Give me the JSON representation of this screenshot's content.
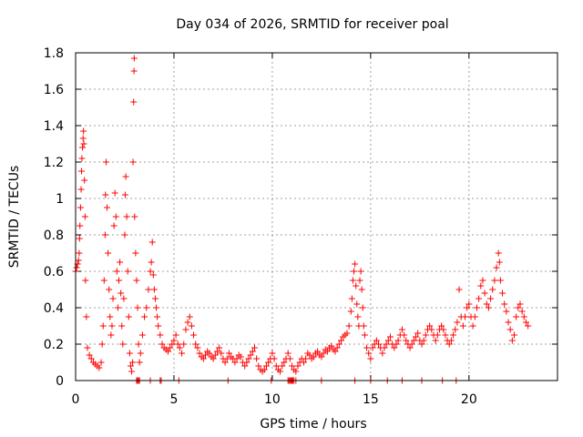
{
  "chart_data": {
    "type": "scatter",
    "title": "Day 034 of 2026, SRMTID for receiver poal",
    "xlabel": "GPS time / hours",
    "ylabel": "SRMTID / TECUs",
    "xlim": [
      0,
      24.5
    ],
    "ylim": [
      0,
      1.8
    ],
    "xticks": [
      0,
      5,
      10,
      15,
      20
    ],
    "yticks": [
      0,
      0.2,
      0.4,
      0.6,
      0.8,
      1,
      1.2,
      1.4,
      1.6,
      1.8
    ],
    "ytick_labels": [
      "0",
      "0.2",
      "0.4",
      "0.6",
      "0.8",
      "1",
      "1.2",
      "1.4",
      "1.6",
      "1.8"
    ],
    "grid": true,
    "marker": "+",
    "color": "#ff0000",
    "series": [
      {
        "name": "SRMTID",
        "points": [
          [
            0.0,
            0.6
          ],
          [
            0.05,
            0.62
          ],
          [
            0.1,
            0.64
          ],
          [
            0.15,
            0.66
          ],
          [
            0.18,
            0.7
          ],
          [
            0.2,
            0.78
          ],
          [
            0.22,
            0.85
          ],
          [
            0.25,
            0.95
          ],
          [
            0.28,
            1.05
          ],
          [
            0.3,
            1.15
          ],
          [
            0.32,
            1.22
          ],
          [
            0.35,
            1.28
          ],
          [
            0.38,
            1.33
          ],
          [
            0.4,
            1.37
          ],
          [
            0.42,
            1.3
          ],
          [
            0.45,
            1.1
          ],
          [
            0.48,
            0.9
          ],
          [
            0.5,
            0.55
          ],
          [
            0.55,
            0.35
          ],
          [
            0.6,
            0.18
          ],
          [
            0.7,
            0.14
          ],
          [
            0.8,
            0.12
          ],
          [
            0.9,
            0.1
          ],
          [
            1.0,
            0.09
          ],
          [
            1.1,
            0.08
          ],
          [
            1.2,
            0.07
          ],
          [
            1.3,
            0.1
          ],
          [
            1.35,
            0.2
          ],
          [
            1.4,
            0.3
          ],
          [
            1.45,
            0.55
          ],
          [
            1.5,
            0.8
          ],
          [
            1.52,
            1.02
          ],
          [
            1.55,
            1.2
          ],
          [
            1.6,
            0.95
          ],
          [
            1.65,
            0.7
          ],
          [
            1.7,
            0.5
          ],
          [
            1.75,
            0.35
          ],
          [
            1.8,
            0.25
          ],
          [
            1.85,
            0.3
          ],
          [
            1.9,
            0.45
          ],
          [
            1.95,
            0.85
          ],
          [
            2.0,
            1.03
          ],
          [
            2.05,
            0.9
          ],
          [
            2.1,
            0.6
          ],
          [
            2.15,
            0.4
          ],
          [
            2.2,
            0.55
          ],
          [
            2.25,
            0.65
          ],
          [
            2.3,
            0.48
          ],
          [
            2.35,
            0.3
          ],
          [
            2.4,
            0.2
          ],
          [
            2.45,
            0.45
          ],
          [
            2.5,
            0.8
          ],
          [
            2.52,
            1.02
          ],
          [
            2.55,
            1.12
          ],
          [
            2.6,
            0.9
          ],
          [
            2.65,
            0.6
          ],
          [
            2.7,
            0.35
          ],
          [
            2.75,
            0.15
          ],
          [
            2.8,
            0.08
          ],
          [
            2.85,
            0.05
          ],
          [
            2.9,
            0.1
          ],
          [
            2.92,
            1.2
          ],
          [
            2.95,
            1.53
          ],
          [
            2.97,
            1.7
          ],
          [
            2.98,
            1.77
          ],
          [
            3.0,
            0.9
          ],
          [
            3.05,
            0.7
          ],
          [
            3.1,
            0.55
          ],
          [
            3.15,
            0.4
          ],
          [
            3.2,
            0.2
          ],
          [
            3.25,
            0.1
          ],
          [
            3.3,
            0.15
          ],
          [
            3.4,
            0.25
          ],
          [
            3.5,
            0.35
          ],
          [
            3.6,
            0.4
          ],
          [
            3.7,
            0.5
          ],
          [
            3.8,
            0.6
          ],
          [
            3.85,
            0.65
          ],
          [
            3.9,
            0.76
          ],
          [
            3.95,
            0.58
          ],
          [
            4.0,
            0.5
          ],
          [
            4.05,
            0.45
          ],
          [
            4.1,
            0.4
          ],
          [
            4.15,
            0.35
          ],
          [
            4.2,
            0.3
          ],
          [
            4.3,
            0.25
          ],
          [
            4.4,
            0.2
          ],
          [
            4.5,
            0.18
          ],
          [
            4.6,
            0.17
          ],
          [
            4.7,
            0.16
          ],
          [
            4.8,
            0.18
          ],
          [
            4.9,
            0.2
          ],
          [
            5.0,
            0.22
          ],
          [
            5.1,
            0.25
          ],
          [
            5.2,
            0.2
          ],
          [
            5.3,
            0.18
          ],
          [
            5.4,
            0.15
          ],
          [
            5.5,
            0.2
          ],
          [
            5.6,
            0.28
          ],
          [
            5.7,
            0.32
          ],
          [
            5.8,
            0.35
          ],
          [
            5.9,
            0.3
          ],
          [
            6.0,
            0.25
          ],
          [
            6.1,
            0.2
          ],
          [
            6.2,
            0.18
          ],
          [
            6.3,
            0.15
          ],
          [
            6.4,
            0.13
          ],
          [
            6.5,
            0.12
          ],
          [
            6.6,
            0.14
          ],
          [
            6.7,
            0.16
          ],
          [
            6.8,
            0.15
          ],
          [
            6.9,
            0.13
          ],
          [
            7.0,
            0.12
          ],
          [
            7.1,
            0.14
          ],
          [
            7.2,
            0.16
          ],
          [
            7.3,
            0.18
          ],
          [
            7.4,
            0.15
          ],
          [
            7.5,
            0.12
          ],
          [
            7.6,
            0.1
          ],
          [
            7.7,
            0.12
          ],
          [
            7.8,
            0.15
          ],
          [
            7.9,
            0.13
          ],
          [
            8.0,
            0.12
          ],
          [
            8.1,
            0.1
          ],
          [
            8.2,
            0.12
          ],
          [
            8.3,
            0.14
          ],
          [
            8.4,
            0.13
          ],
          [
            8.5,
            0.1
          ],
          [
            8.6,
            0.08
          ],
          [
            8.7,
            0.1
          ],
          [
            8.8,
            0.12
          ],
          [
            8.9,
            0.14
          ],
          [
            9.0,
            0.16
          ],
          [
            9.1,
            0.18
          ],
          [
            9.2,
            0.12
          ],
          [
            9.3,
            0.08
          ],
          [
            9.4,
            0.06
          ],
          [
            9.5,
            0.05
          ],
          [
            9.6,
            0.06
          ],
          [
            9.7,
            0.08
          ],
          [
            9.8,
            0.1
          ],
          [
            9.9,
            0.12
          ],
          [
            10.0,
            0.15
          ],
          [
            10.1,
            0.12
          ],
          [
            10.2,
            0.08
          ],
          [
            10.3,
            0.06
          ],
          [
            10.4,
            0.05
          ],
          [
            10.5,
            0.08
          ],
          [
            10.6,
            0.1
          ],
          [
            10.7,
            0.12
          ],
          [
            10.8,
            0.15
          ],
          [
            10.9,
            0.12
          ],
          [
            11.0,
            0.08
          ],
          [
            11.1,
            0.06
          ],
          [
            11.2,
            0.05
          ],
          [
            11.3,
            0.08
          ],
          [
            11.4,
            0.1
          ],
          [
            11.5,
            0.12
          ],
          [
            11.6,
            0.1
          ],
          [
            11.7,
            0.12
          ],
          [
            11.8,
            0.15
          ],
          [
            11.9,
            0.14
          ],
          [
            12.0,
            0.12
          ],
          [
            12.1,
            0.13
          ],
          [
            12.2,
            0.15
          ],
          [
            12.3,
            0.16
          ],
          [
            12.4,
            0.14
          ],
          [
            12.5,
            0.13
          ],
          [
            12.6,
            0.15
          ],
          [
            12.7,
            0.17
          ],
          [
            12.8,
            0.16
          ],
          [
            12.9,
            0.18
          ],
          [
            13.0,
            0.19
          ],
          [
            13.1,
            0.17
          ],
          [
            13.2,
            0.16
          ],
          [
            13.3,
            0.18
          ],
          [
            13.4,
            0.2
          ],
          [
            13.5,
            0.22
          ],
          [
            13.6,
            0.24
          ],
          [
            13.7,
            0.25
          ],
          [
            13.8,
            0.26
          ],
          [
            13.9,
            0.3
          ],
          [
            14.0,
            0.38
          ],
          [
            14.05,
            0.45
          ],
          [
            14.1,
            0.55
          ],
          [
            14.15,
            0.6
          ],
          [
            14.2,
            0.64
          ],
          [
            14.25,
            0.52
          ],
          [
            14.3,
            0.42
          ],
          [
            14.35,
            0.35
          ],
          [
            14.4,
            0.3
          ],
          [
            14.45,
            0.55
          ],
          [
            14.5,
            0.6
          ],
          [
            14.55,
            0.5
          ],
          [
            14.6,
            0.4
          ],
          [
            14.65,
            0.3
          ],
          [
            14.7,
            0.25
          ],
          [
            14.8,
            0.18
          ],
          [
            14.9,
            0.15
          ],
          [
            15.0,
            0.12
          ],
          [
            15.1,
            0.18
          ],
          [
            15.2,
            0.2
          ],
          [
            15.3,
            0.22
          ],
          [
            15.4,
            0.2
          ],
          [
            15.5,
            0.18
          ],
          [
            15.6,
            0.15
          ],
          [
            15.7,
            0.18
          ],
          [
            15.8,
            0.2
          ],
          [
            15.9,
            0.22
          ],
          [
            16.0,
            0.24
          ],
          [
            16.1,
            0.2
          ],
          [
            16.2,
            0.18
          ],
          [
            16.3,
            0.2
          ],
          [
            16.4,
            0.22
          ],
          [
            16.5,
            0.25
          ],
          [
            16.6,
            0.28
          ],
          [
            16.7,
            0.25
          ],
          [
            16.8,
            0.22
          ],
          [
            16.9,
            0.2
          ],
          [
            17.0,
            0.18
          ],
          [
            17.1,
            0.2
          ],
          [
            17.2,
            0.22
          ],
          [
            17.3,
            0.24
          ],
          [
            17.4,
            0.26
          ],
          [
            17.5,
            0.22
          ],
          [
            17.6,
            0.2
          ],
          [
            17.7,
            0.22
          ],
          [
            17.8,
            0.25
          ],
          [
            17.9,
            0.28
          ],
          [
            18.0,
            0.3
          ],
          [
            18.1,
            0.28
          ],
          [
            18.2,
            0.25
          ],
          [
            18.3,
            0.22
          ],
          [
            18.4,
            0.25
          ],
          [
            18.5,
            0.28
          ],
          [
            18.6,
            0.3
          ],
          [
            18.7,
            0.28
          ],
          [
            18.8,
            0.25
          ],
          [
            18.9,
            0.22
          ],
          [
            19.0,
            0.2
          ],
          [
            19.1,
            0.22
          ],
          [
            19.2,
            0.25
          ],
          [
            19.3,
            0.28
          ],
          [
            19.4,
            0.32
          ],
          [
            19.5,
            0.5
          ],
          [
            19.6,
            0.35
          ],
          [
            19.7,
            0.3
          ],
          [
            19.8,
            0.35
          ],
          [
            19.9,
            0.4
          ],
          [
            20.0,
            0.42
          ],
          [
            20.1,
            0.35
          ],
          [
            20.2,
            0.3
          ],
          [
            20.3,
            0.35
          ],
          [
            20.4,
            0.4
          ],
          [
            20.5,
            0.45
          ],
          [
            20.6,
            0.52
          ],
          [
            20.7,
            0.55
          ],
          [
            20.8,
            0.48
          ],
          [
            20.9,
            0.42
          ],
          [
            21.0,
            0.4
          ],
          [
            21.1,
            0.45
          ],
          [
            21.2,
            0.5
          ],
          [
            21.3,
            0.55
          ],
          [
            21.4,
            0.62
          ],
          [
            21.5,
            0.7
          ],
          [
            21.55,
            0.65
          ],
          [
            21.6,
            0.55
          ],
          [
            21.7,
            0.48
          ],
          [
            21.8,
            0.42
          ],
          [
            21.9,
            0.38
          ],
          [
            22.0,
            0.32
          ],
          [
            22.1,
            0.28
          ],
          [
            22.2,
            0.22
          ],
          [
            22.3,
            0.25
          ],
          [
            22.4,
            0.35
          ],
          [
            22.5,
            0.4
          ],
          [
            22.6,
            0.42
          ],
          [
            22.7,
            0.38
          ],
          [
            22.8,
            0.35
          ],
          [
            22.9,
            0.32
          ],
          [
            23.0,
            0.3
          ]
        ]
      }
    ],
    "zero_marks": [
      3.1,
      3.15,
      3.2,
      3.25,
      3.8,
      4.3,
      4.35,
      5.25,
      7.75,
      9.95,
      10.8,
      10.85,
      10.9,
      10.95,
      11.0,
      11.05,
      11.1,
      11.2,
      12.5,
      14.2,
      15.0,
      15.85,
      16.6,
      17.6,
      18.65,
      19.35
    ]
  }
}
